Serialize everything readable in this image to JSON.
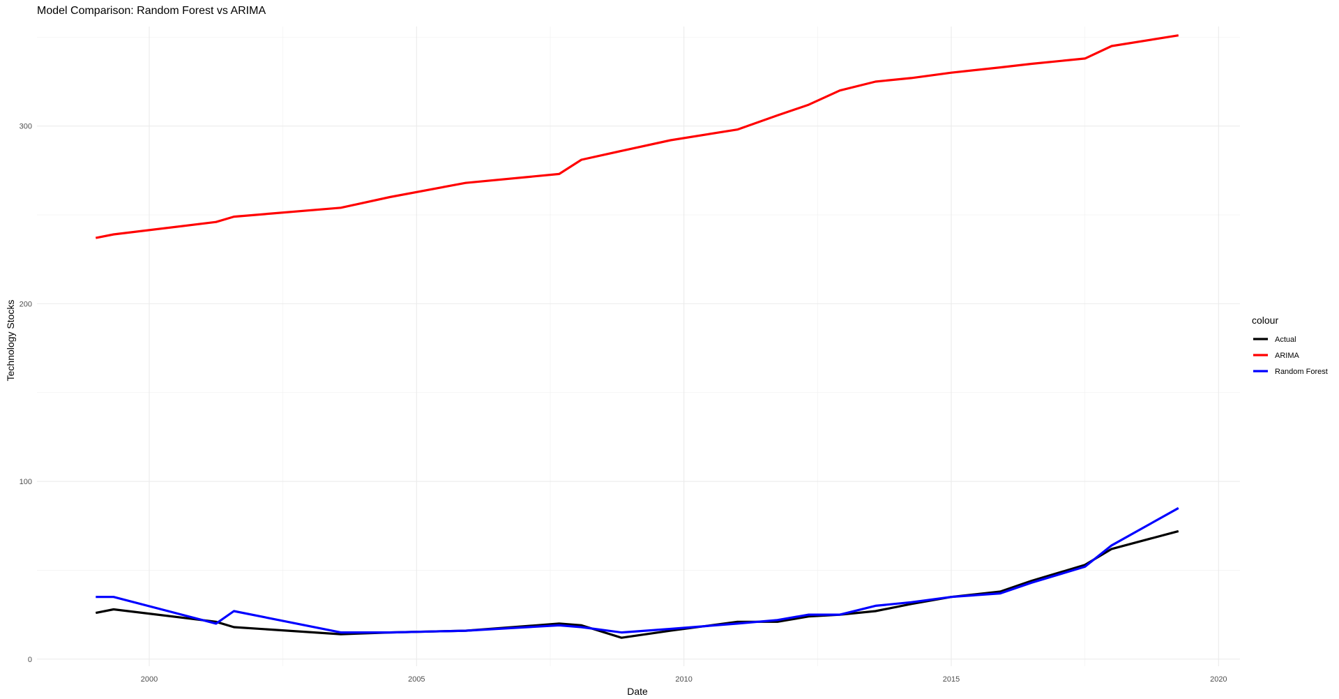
{
  "chart_data": {
    "type": "line",
    "title": "Model Comparison: Random Forest vs ARIMA",
    "xlabel": "Date",
    "ylabel": "Technology Stocks",
    "xlim": [
      1997.9,
      2020.4
    ],
    "ylim": [
      -4,
      356
    ],
    "x_ticks": [
      2000,
      2005,
      2010,
      2015,
      2020
    ],
    "y_ticks": [
      0,
      100,
      200,
      300
    ],
    "grid": true,
    "legend": {
      "title": "colour",
      "position": "right"
    },
    "series": [
      {
        "name": "Actual",
        "color": "#000000",
        "x": [
          "1999-01",
          "1999-05",
          "2001-04",
          "2001-08",
          "2003-08",
          "2004-07",
          "2005-12",
          "2007-09",
          "2008-02",
          "2008-11",
          "2009-10",
          "2011-01",
          "2011-10",
          "2012-05",
          "2012-12",
          "2013-08",
          "2014-04",
          "2015-01",
          "2015-12",
          "2016-07",
          "2017-07",
          "2018-01",
          "2019-04"
        ],
        "y": [
          26,
          28,
          21,
          18,
          14,
          15,
          16,
          20,
          19,
          12,
          16,
          21,
          21,
          24,
          25,
          27,
          31,
          35,
          38,
          44,
          53,
          62,
          72
        ]
      },
      {
        "name": "ARIMA",
        "color": "#ff0000",
        "x": [
          "1999-01",
          "1999-05",
          "2001-04",
          "2001-08",
          "2003-08",
          "2004-07",
          "2005-12",
          "2007-09",
          "2008-02",
          "2008-11",
          "2009-10",
          "2011-01",
          "2011-10",
          "2012-05",
          "2012-12",
          "2013-08",
          "2014-04",
          "2015-01",
          "2015-12",
          "2016-07",
          "2017-07",
          "2018-01",
          "2019-04"
        ],
        "y": [
          237,
          239,
          246,
          249,
          254,
          260,
          268,
          273,
          281,
          286,
          292,
          298,
          306,
          312,
          320,
          325,
          327,
          330,
          333,
          335,
          338,
          345,
          351
        ]
      },
      {
        "name": "Random Forest",
        "color": "#0000ff",
        "x": [
          "1999-01",
          "1999-05",
          "2001-04",
          "2001-08",
          "2003-08",
          "2004-07",
          "2005-12",
          "2007-09",
          "2008-02",
          "2008-11",
          "2009-10",
          "2011-01",
          "2011-10",
          "2012-05",
          "2012-12",
          "2013-08",
          "2014-04",
          "2015-01",
          "2015-12",
          "2016-07",
          "2017-07",
          "2018-01",
          "2019-04"
        ],
        "y": [
          35,
          35,
          20,
          27,
          15,
          15,
          16,
          19,
          18,
          15,
          17,
          20,
          22,
          25,
          25,
          30,
          32,
          35,
          37,
          43,
          52,
          64,
          85
        ]
      }
    ]
  }
}
